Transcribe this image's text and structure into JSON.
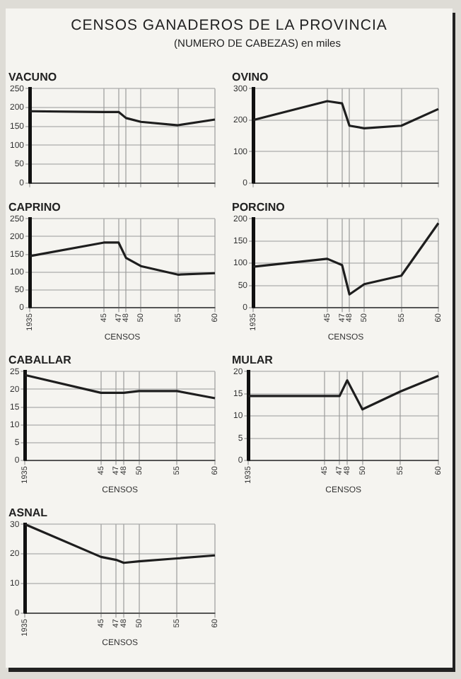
{
  "chart_data": [
    {
      "type": "other",
      "title": "CENSOS GANADEROS DE LA PROVINCIA",
      "subtitle": "(NUMERO DE CABEZAS) en miles"
    },
    {
      "type": "line",
      "title": "VACUNO",
      "x": [
        1935,
        1945,
        1947,
        1948,
        1950,
        1955,
        1960
      ],
      "values": [
        190,
        188,
        188,
        172,
        162,
        153,
        168
      ],
      "color": "#1e1e1e",
      "xlim": [
        1935,
        1960
      ],
      "xticks": [
        {
          "value": 1935,
          "label": null
        },
        {
          "value": 1945,
          "label": null
        },
        {
          "value": 1947,
          "label": null
        },
        {
          "value": 1948,
          "label": null
        },
        {
          "value": 1950,
          "label": null
        },
        {
          "value": 1955,
          "label": null
        },
        {
          "value": 1960,
          "label": null
        }
      ],
      "ylim": [
        0,
        250
      ],
      "yticks": [
        0,
        50,
        100,
        150,
        200,
        250
      ],
      "grid": true,
      "tick_labels": "y"
    },
    {
      "type": "line",
      "title": "OVINO",
      "x": [
        1935,
        1945,
        1947,
        1948,
        1950,
        1955,
        1960
      ],
      "values": [
        200,
        260,
        253,
        182,
        174,
        182,
        235
      ],
      "color": "#1e1e1e",
      "xlim": [
        1935,
        1960
      ],
      "xticks": [
        {
          "value": 1935,
          "label": null
        },
        {
          "value": 1945,
          "label": null
        },
        {
          "value": 1947,
          "label": null
        },
        {
          "value": 1948,
          "label": null
        },
        {
          "value": 1950,
          "label": null
        },
        {
          "value": 1955,
          "label": null
        },
        {
          "value": 1960,
          "label": null
        }
      ],
      "ylim": [
        0,
        300
      ],
      "yticks": [
        0,
        100,
        200,
        300
      ],
      "grid": true,
      "tick_labels": "y"
    },
    {
      "type": "line",
      "title": "CAPRINO",
      "xlabel": "CENSOS",
      "x": [
        1935,
        1945,
        1947,
        1948,
        1950,
        1955,
        1960
      ],
      "values": [
        145,
        183,
        183,
        140,
        117,
        93,
        97
      ],
      "color": "#1e1e1e",
      "xlim": [
        1935,
        1960
      ],
      "xticks": [
        {
          "value": 1935,
          "label": "1935"
        },
        {
          "value": 1945,
          "label": "45"
        },
        {
          "value": 1947,
          "label": "47"
        },
        {
          "value": 1948,
          "label": "48"
        },
        {
          "value": 1950,
          "label": "50"
        },
        {
          "value": 1955,
          "label": "55"
        },
        {
          "value": 1960,
          "label": "60"
        }
      ],
      "ylim": [
        0,
        250
      ],
      "yticks": [
        0,
        50,
        100,
        150,
        200,
        250
      ],
      "grid": true
    },
    {
      "type": "line",
      "title": "PORCINO",
      "xlabel": "CENSOS",
      "x": [
        1935,
        1945,
        1947,
        1948,
        1950,
        1955,
        1960
      ],
      "values": [
        92,
        110,
        96,
        30,
        53,
        72,
        190
      ],
      "color": "#1e1e1e",
      "xlim": [
        1935,
        1960
      ],
      "xticks": [
        {
          "value": 1935,
          "label": "1935"
        },
        {
          "value": 1945,
          "label": "45"
        },
        {
          "value": 1947,
          "label": "47"
        },
        {
          "value": 1948,
          "label": "48"
        },
        {
          "value": 1950,
          "label": "50"
        },
        {
          "value": 1955,
          "label": "55"
        },
        {
          "value": 1960,
          "label": "60"
        }
      ],
      "ylim": [
        0,
        200
      ],
      "yticks": [
        0,
        50,
        100,
        150,
        200
      ],
      "grid": true
    },
    {
      "type": "line",
      "title": "CABALLAR",
      "xlabel": "CENSOS",
      "x": [
        1935,
        1945,
        1947,
        1948,
        1950,
        1955,
        1960
      ],
      "values": [
        24,
        19,
        19,
        19,
        19.5,
        19.5,
        17.5
      ],
      "color": "#1e1e1e",
      "xlim": [
        1935,
        1960
      ],
      "xticks": [
        {
          "value": 1935,
          "label": "1935"
        },
        {
          "value": 1945,
          "label": "45"
        },
        {
          "value": 1947,
          "label": "47"
        },
        {
          "value": 1948,
          "label": "48"
        },
        {
          "value": 1950,
          "label": "50"
        },
        {
          "value": 1955,
          "label": "55"
        },
        {
          "value": 1960,
          "label": "60"
        }
      ],
      "ylim": [
        0,
        25
      ],
      "yticks": [
        0,
        5,
        10,
        15,
        20,
        25
      ],
      "grid": true
    },
    {
      "type": "line",
      "title": "MULAR",
      "xlabel": "CENSOS",
      "x": [
        1935,
        1945,
        1947,
        1948,
        1950,
        1955,
        1960
      ],
      "values": [
        14.5,
        14.5,
        14.5,
        18,
        11.5,
        15.5,
        19
      ],
      "color": "#1e1e1e",
      "xlim": [
        1935,
        1960
      ],
      "xticks": [
        {
          "value": 1935,
          "label": "1935"
        },
        {
          "value": 1945,
          "label": "45"
        },
        {
          "value": 1947,
          "label": "47"
        },
        {
          "value": 1948,
          "label": "48"
        },
        {
          "value": 1950,
          "label": "50"
        },
        {
          "value": 1955,
          "label": "55"
        },
        {
          "value": 1960,
          "label": "60"
        }
      ],
      "ylim": [
        0,
        20
      ],
      "yticks": [
        0,
        5,
        10,
        15,
        20
      ],
      "grid": true
    },
    {
      "type": "line",
      "title": "ASNAL",
      "xlabel": "CENSOS",
      "x": [
        1935,
        1945,
        1947,
        1948,
        1950,
        1955,
        1960
      ],
      "values": [
        30,
        19,
        18,
        17,
        17.5,
        18.5,
        19.5
      ],
      "color": "#1e1e1e",
      "xlim": [
        1935,
        1960
      ],
      "xticks": [
        {
          "value": 1935,
          "label": "1935"
        },
        {
          "value": 1945,
          "label": "45"
        },
        {
          "value": 1947,
          "label": "47"
        },
        {
          "value": 1948,
          "label": "48"
        },
        {
          "value": 1950,
          "label": "50"
        },
        {
          "value": 1955,
          "label": "55"
        },
        {
          "value": 1960,
          "label": "60"
        }
      ],
      "ylim": [
        0,
        30
      ],
      "yticks": [
        0,
        10,
        20,
        30
      ],
      "grid": true
    }
  ]
}
